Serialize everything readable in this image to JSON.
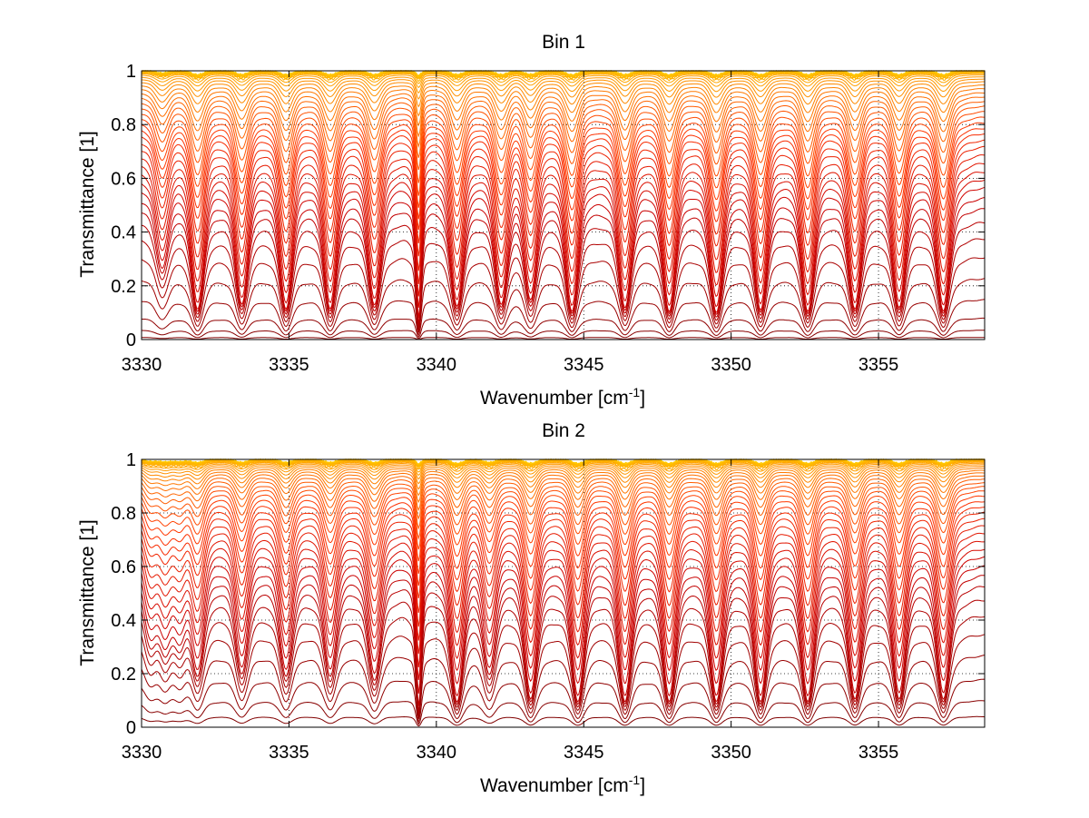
{
  "chart_data": [
    {
      "type": "line",
      "title": "Bin 1",
      "xlabel_main": "Wavenumber [cm",
      "xlabel_sup": "-1",
      "xlabel_end": "]",
      "ylabel": "Transmittance [1]",
      "xlim": [
        3330,
        3358.6
      ],
      "ylim": [
        0,
        1
      ],
      "xticks": [
        3330,
        3335,
        3340,
        3345,
        3350,
        3355
      ],
      "yticks": [
        0,
        0.2,
        0.4,
        0.6,
        0.8,
        1
      ],
      "grid": true,
      "grid_style": "dotted",
      "series_count": 38,
      "color_gradient": [
        "#800000",
        "#cc0000",
        "#ff3300",
        "#ff8800",
        "#ffcc00"
      ],
      "line_positions_cm-1": [
        3330.7,
        3331.9,
        3333.4,
        3334.9,
        3336.4,
        3337.9,
        3339.4,
        3340.7,
        3342.2,
        3343.2,
        3344.6,
        3346.4,
        3347.9,
        3349.5,
        3351.0,
        3352.6,
        3354.2,
        3355.7,
        3357.2
      ],
      "min_transmittance_per_line": [
        0.45,
        0.12,
        0.16,
        0.12,
        0.12,
        0.15,
        0.0,
        0.14,
        0.16,
        0.2,
        0.1,
        0.13,
        0.1,
        0.09,
        0.11,
        0.1,
        0.12,
        0.13,
        0.1
      ],
      "base_levels": [
        1.0,
        0.999,
        0.998,
        0.996,
        0.994,
        0.99,
        0.985,
        0.978,
        0.97,
        0.96,
        0.948,
        0.935,
        0.92,
        0.905,
        0.888,
        0.87,
        0.85,
        0.83,
        0.81,
        0.79,
        0.77,
        0.745,
        0.72,
        0.69,
        0.66,
        0.63,
        0.6,
        0.57,
        0.53,
        0.49,
        0.44,
        0.38,
        0.31,
        0.23,
        0.15,
        0.08,
        0.035,
        0.008
      ]
    },
    {
      "type": "line",
      "title": "Bin 2",
      "xlabel_main": "Wavenumber [cm",
      "xlabel_sup": "-1",
      "xlabel_end": "]",
      "ylabel": "Transmittance [1]",
      "xlim": [
        3330,
        3358.6
      ],
      "ylim": [
        0,
        1
      ],
      "xticks": [
        3330,
        3335,
        3340,
        3345,
        3350,
        3355
      ],
      "yticks": [
        0,
        0.2,
        0.4,
        0.6,
        0.8,
        1
      ],
      "grid": true,
      "grid_style": "dotted",
      "series_count": 38,
      "color_gradient": [
        "#800000",
        "#cc0000",
        "#ff3300",
        "#ff8800",
        "#ffcc00"
      ],
      "line_positions_cm-1": [
        3330.3,
        3330.8,
        3331.3,
        3331.9,
        3333.4,
        3334.9,
        3336.4,
        3337.9,
        3339.4,
        3340.7,
        3341.8,
        3343.2,
        3344.8,
        3346.4,
        3347.9,
        3349.5,
        3351.0,
        3352.6,
        3354.2,
        3355.7,
        3357.2
      ],
      "min_transmittance_per_line": [
        0.55,
        0.5,
        0.55,
        0.3,
        0.3,
        0.28,
        0.28,
        0.25,
        0.0,
        0.08,
        0.3,
        0.1,
        0.08,
        0.08,
        0.08,
        0.08,
        0.08,
        0.08,
        0.1,
        0.1,
        0.1
      ],
      "base_levels": [
        1.0,
        0.999,
        0.998,
        0.997,
        0.995,
        0.993,
        0.99,
        0.986,
        0.981,
        0.975,
        0.968,
        0.96,
        0.951,
        0.94,
        0.928,
        0.914,
        0.9,
        0.884,
        0.866,
        0.846,
        0.826,
        0.805,
        0.78,
        0.755,
        0.728,
        0.7,
        0.67,
        0.64,
        0.605,
        0.57,
        0.53,
        0.48,
        0.42,
        0.35,
        0.27,
        0.18,
        0.1,
        0.04
      ]
    }
  ]
}
